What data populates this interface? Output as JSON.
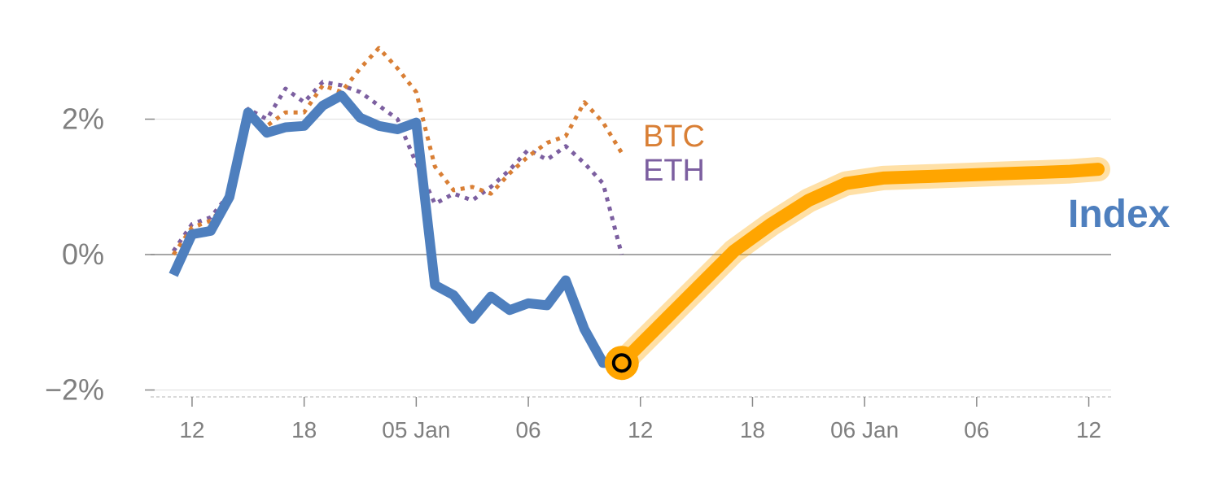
{
  "chart_data": {
    "type": "line",
    "ylim": [
      -2.05,
      3.2
    ],
    "yticks": [
      {
        "value": 2,
        "label": "2%"
      },
      {
        "value": 0,
        "label": "0%"
      },
      {
        "value": -2,
        "label": "−2%"
      }
    ],
    "xticks": [
      {
        "index": 1,
        "label": "12"
      },
      {
        "index": 7,
        "label": "18"
      },
      {
        "index": 13,
        "label": "05 Jan"
      },
      {
        "index": 19,
        "label": "06"
      },
      {
        "index": 25,
        "label": "12"
      },
      {
        "index": 31,
        "label": "18"
      },
      {
        "index": 37,
        "label": "06 Jan"
      },
      {
        "index": 43,
        "label": "06"
      },
      {
        "index": 49,
        "label": "12"
      }
    ],
    "grid": true,
    "series": [
      {
        "name": "BTC",
        "color": "#d97f35",
        "style": "dotted",
        "x": [
          0,
          1,
          2,
          3,
          4,
          5,
          6,
          7,
          8,
          9,
          10,
          11,
          12,
          13,
          14,
          15,
          16,
          17,
          18,
          19,
          20,
          21,
          22,
          23,
          24
        ],
        "values": [
          0.0,
          0.4,
          0.5,
          0.8,
          2.0,
          1.9,
          2.1,
          2.1,
          2.5,
          2.4,
          2.75,
          3.05,
          2.75,
          2.4,
          1.3,
          0.95,
          1.0,
          0.9,
          1.2,
          1.45,
          1.65,
          1.75,
          2.25,
          1.95,
          1.5
        ]
      },
      {
        "name": "ETH",
        "color": "#7c5fa0",
        "style": "dotted",
        "x": [
          0,
          1,
          2,
          3,
          4,
          5,
          6,
          7,
          8,
          9,
          10,
          11,
          12,
          13,
          14,
          15,
          16,
          17,
          18,
          19,
          20,
          21,
          22,
          23,
          24
        ],
        "values": [
          0.05,
          0.45,
          0.55,
          0.9,
          2.15,
          2.0,
          2.45,
          2.25,
          2.55,
          2.5,
          2.4,
          2.2,
          2.0,
          1.35,
          0.75,
          0.9,
          0.8,
          1.0,
          1.25,
          1.55,
          1.4,
          1.6,
          1.35,
          1.05,
          0
        ]
      },
      {
        "name": "Index",
        "color": "#4e7fbe",
        "style": "solid",
        "x": [
          0,
          1,
          2,
          3,
          4,
          5,
          6,
          7,
          8,
          9,
          10,
          11,
          12,
          13,
          14,
          15,
          16,
          17,
          18,
          19,
          20,
          21,
          22,
          23,
          24
        ],
        "values": [
          -0.3,
          0.3,
          0.35,
          0.85,
          2.1,
          1.8,
          1.88,
          1.9,
          2.2,
          2.35,
          2.02,
          1.9,
          1.85,
          1.95,
          -0.45,
          -0.6,
          -0.95,
          -0.62,
          -0.82,
          -0.72,
          -0.75,
          -0.38,
          -1.1,
          -1.6,
          -1.6
        ]
      },
      {
        "name": "forecast",
        "color": "#ffa500",
        "style": "band",
        "x": [
          24,
          26,
          28,
          30,
          32,
          34,
          36,
          38,
          40,
          42,
          44,
          46,
          48,
          49.5
        ],
        "values": [
          -1.6,
          -1.05,
          -0.5,
          0.05,
          0.45,
          0.8,
          1.05,
          1.13,
          1.15,
          1.17,
          1.19,
          1.21,
          1.23,
          1.26
        ]
      }
    ],
    "labels": {
      "btc": "BTC",
      "eth": "ETH",
      "index": "Index"
    },
    "label_colors": {
      "btc": "#d97f35",
      "eth": "#7c5fa0",
      "index": "#4e7fbe"
    },
    "marker": {
      "x": 24,
      "y": -1.6
    }
  }
}
